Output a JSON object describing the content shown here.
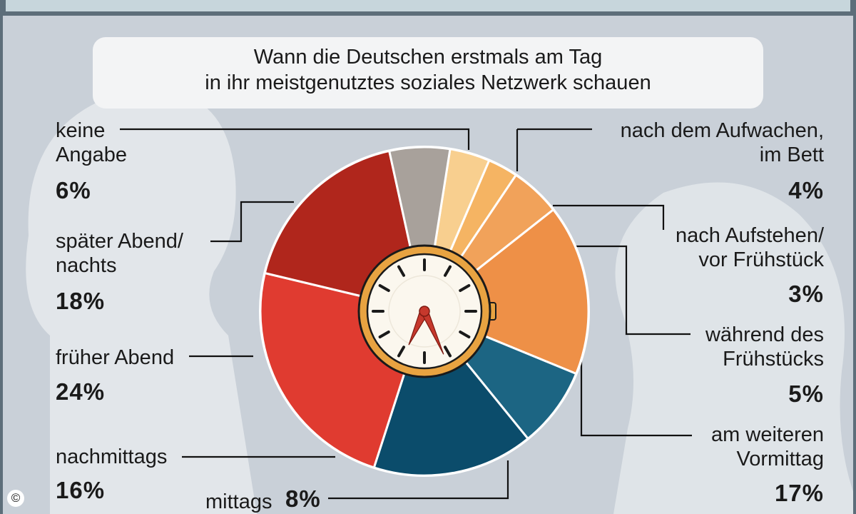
{
  "chart_data": {
    "type": "pie",
    "title": "Wann die Deutschen erstmals am Tag\nin ihr meistgenutztes soziales Netzwerk schauen",
    "unit": "%",
    "slices": [
      {
        "label": "nach dem Aufwachen,\nim Bett",
        "value": 4,
        "pct_text": "4%",
        "color": "#f8cf8f"
      },
      {
        "label": "nach Aufstehen/\nvor Frühstück",
        "value": 3,
        "pct_text": "3%",
        "color": "#f5b463"
      },
      {
        "label": "während des\nFrühstücks",
        "value": 5,
        "pct_text": "5%",
        "color": "#f1a25a"
      },
      {
        "label": "am weiteren\nVormittag",
        "value": 17,
        "pct_text": "17%",
        "color": "#ee9047"
      },
      {
        "label": "mittags",
        "value": 8,
        "pct_text": "8%",
        "color": "#1c6583"
      },
      {
        "label": "nachmittags",
        "value": 16,
        "pct_text": "16%",
        "color": "#0b4c6b"
      },
      {
        "label": "früher Abend",
        "value": 24,
        "pct_text": "24%",
        "color": "#e03b30"
      },
      {
        "label": "später Abend/\nnachts",
        "value": 18,
        "pct_text": "18%",
        "color": "#b0261c"
      },
      {
        "label": "keine\nAngabe",
        "value": 6,
        "pct_text": "6%",
        "color": "#a8a19b"
      }
    ]
  },
  "colors": {
    "background": "#c9d0d8",
    "header_bar": "#c7d6dc",
    "title_panel": "#f3f4f5",
    "silhouette": "#e2e6ea",
    "clock_ring": "#e8a341"
  },
  "icons": {
    "center": "clock-icon",
    "copyright": "copyright-icon"
  },
  "footer": {
    "copyright_symbol": "©"
  }
}
